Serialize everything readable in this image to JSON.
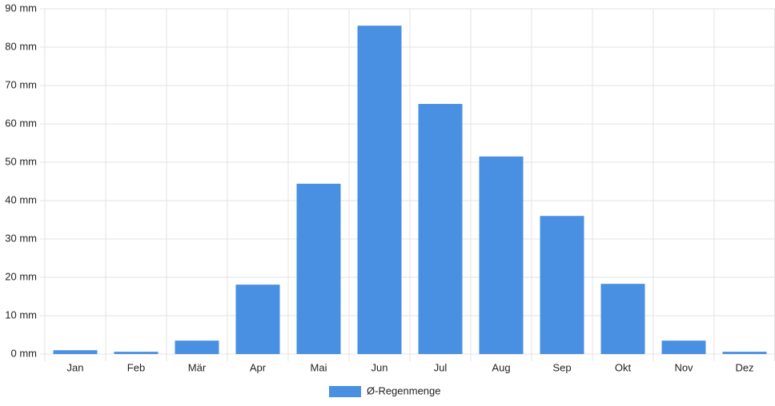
{
  "chart_data": {
    "type": "bar",
    "categories": [
      "Jan",
      "Feb",
      "Mär",
      "Apr",
      "Mai",
      "Jun",
      "Jul",
      "Aug",
      "Sep",
      "Okt",
      "Nov",
      "Dez"
    ],
    "series": [
      {
        "name": "Ø-Regenmenge",
        "color": "#4a90e2",
        "values": [
          1.0,
          0.6,
          3.5,
          18.1,
          44.4,
          85.6,
          65.2,
          51.5,
          36.0,
          18.3,
          3.5,
          0.6
        ]
      }
    ],
    "ylim": [
      0,
      90
    ],
    "yticks": [
      {
        "value": 0,
        "label": "0 mm"
      },
      {
        "value": 10,
        "label": "10 mm"
      },
      {
        "value": 20,
        "label": "20 mm"
      },
      {
        "value": 30,
        "label": "30 mm"
      },
      {
        "value": 40,
        "label": "40 mm"
      },
      {
        "value": 50,
        "label": "50 mm"
      },
      {
        "value": 60,
        "label": "60 mm"
      },
      {
        "value": 70,
        "label": "70 mm"
      },
      {
        "value": 80,
        "label": "80 mm"
      },
      {
        "value": 90,
        "label": "90 mm"
      }
    ],
    "grid": true,
    "legend": "bottom"
  }
}
